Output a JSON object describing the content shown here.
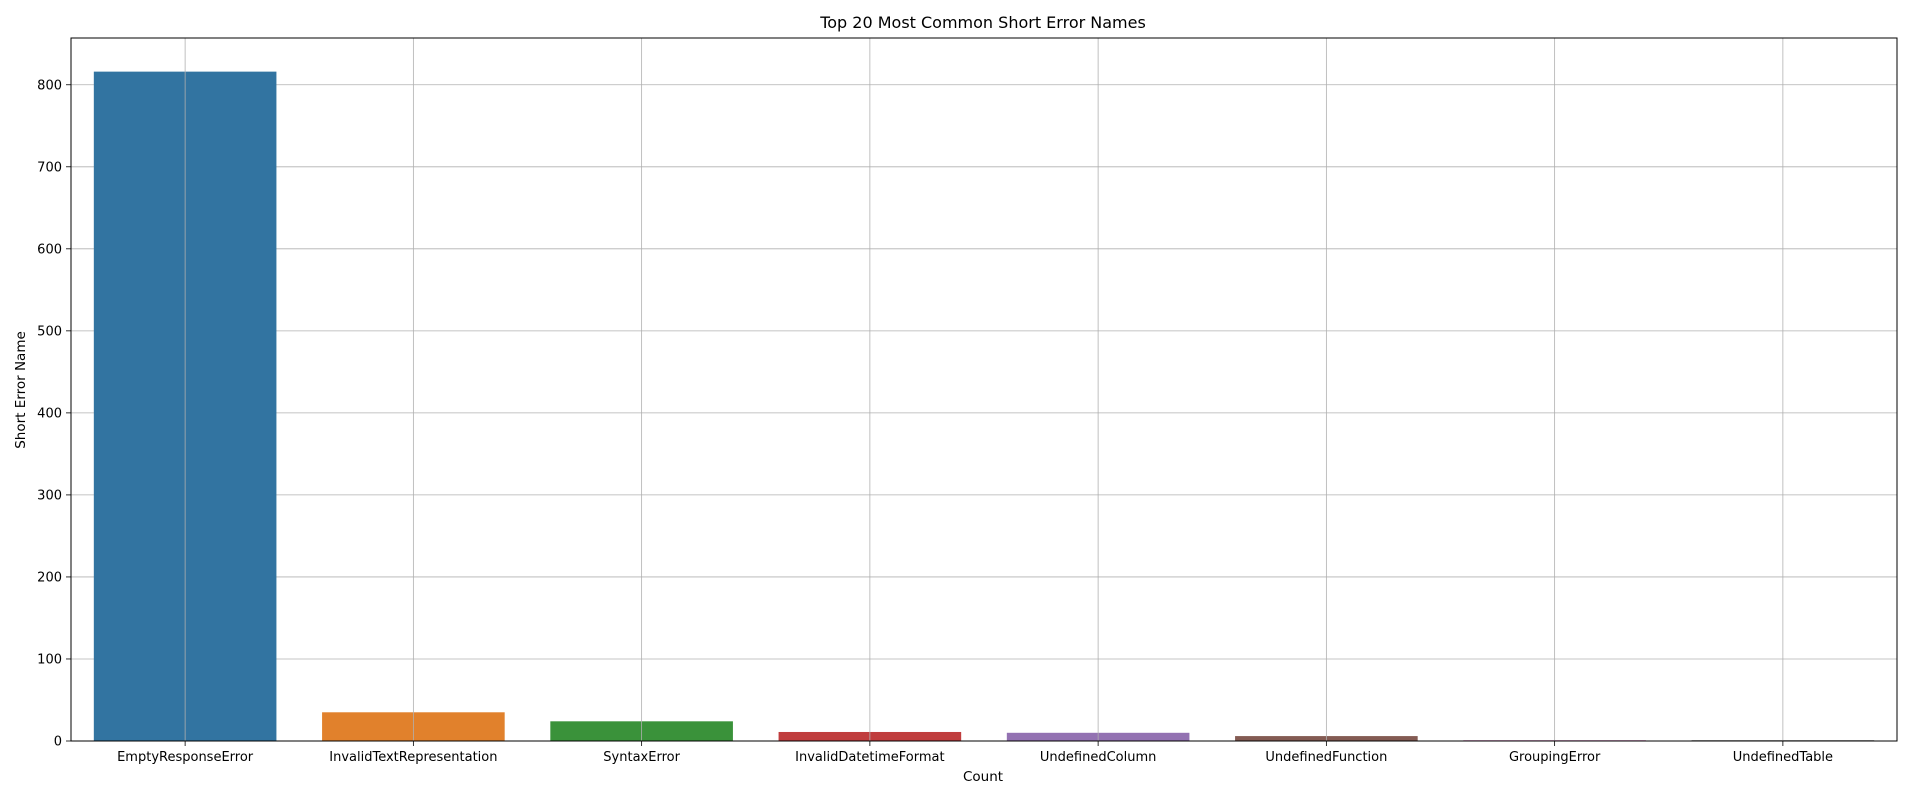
{
  "chart_data": {
    "type": "bar",
    "title": "Top 20 Most Common Short Error Names",
    "xlabel": "Count",
    "ylabel": "Short Error Name",
    "categories": [
      "EmptyResponseError",
      "InvalidTextRepresentation",
      "SyntaxError",
      "InvalidDatetimeFormat",
      "UndefinedColumn",
      "UndefinedFunction",
      "GroupingError",
      "UndefinedTable"
    ],
    "values": [
      816,
      35,
      24,
      11,
      10,
      6,
      1,
      1
    ],
    "colors": [
      "#3274a1",
      "#e1812c",
      "#3a923a",
      "#c03d3e",
      "#9372b2",
      "#845b53",
      "#d684bd",
      "#7f7f7f"
    ],
    "ylim": [
      0,
      857
    ],
    "yticks": [
      0,
      100,
      200,
      300,
      400,
      500,
      600,
      700,
      800
    ],
    "grid": true,
    "legend": "none"
  }
}
